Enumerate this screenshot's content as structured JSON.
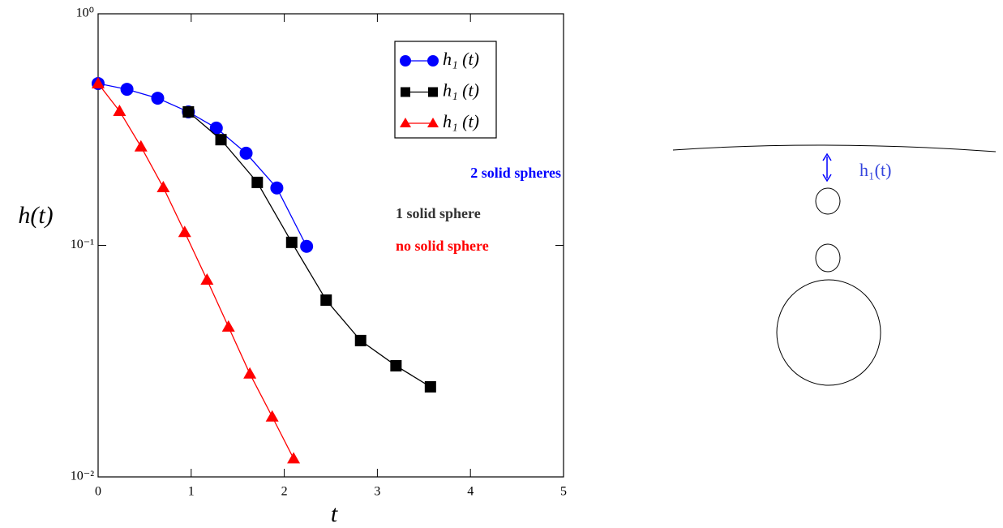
{
  "chart_data": {
    "type": "line",
    "xlabel": "t",
    "ylabel": "h(t)",
    "log_y": true,
    "xlim": [
      0,
      5
    ],
    "xticks": [
      0,
      1,
      2,
      3,
      4,
      5
    ],
    "ylim": [
      0.01,
      1
    ],
    "yticks": [
      {
        "value": 1,
        "label": "10⁰"
      },
      {
        "value": 0.1,
        "label": "10⁻¹"
      },
      {
        "value": 0.01,
        "label": "10⁻²"
      }
    ],
    "legend": "upper right",
    "series": [
      {
        "name": "h₁ (t)",
        "color": "#0000ff",
        "marker": "circle",
        "x": [
          0,
          0.31,
          0.64,
          0.97,
          1.27,
          1.59,
          1.92,
          2.24
        ],
        "values": [
          0.5,
          0.472,
          0.432,
          0.377,
          0.321,
          0.25,
          0.177,
          0.099
        ]
      },
      {
        "name": "h₁ (t)",
        "color": "#000000",
        "marker": "square",
        "x": [
          0.97,
          1.32,
          1.71,
          2.08,
          2.45,
          2.82,
          3.2,
          3.57
        ],
        "values": [
          0.377,
          0.286,
          0.187,
          0.103,
          0.058,
          0.0388,
          0.0302,
          0.0245
        ]
      },
      {
        "name": "h₁ (t)",
        "color": "#ff0000",
        "marker": "triangle",
        "x": [
          0,
          0.23,
          0.46,
          0.7,
          0.93,
          1.17,
          1.4,
          1.63,
          1.87,
          2.1
        ],
        "values": [
          0.5,
          0.38,
          0.267,
          0.178,
          0.114,
          0.071,
          0.0445,
          0.0279,
          0.0182,
          0.012
        ]
      }
    ],
    "annotations": [
      {
        "text": "2 solid spheres",
        "color": "#0000ff"
      },
      {
        "text": "1 solid sphere",
        "color": "#333333"
      },
      {
        "text": "no solid sphere",
        "color": "#ff0000"
      }
    ]
  },
  "diagram": {
    "label": "h₁(t)"
  }
}
